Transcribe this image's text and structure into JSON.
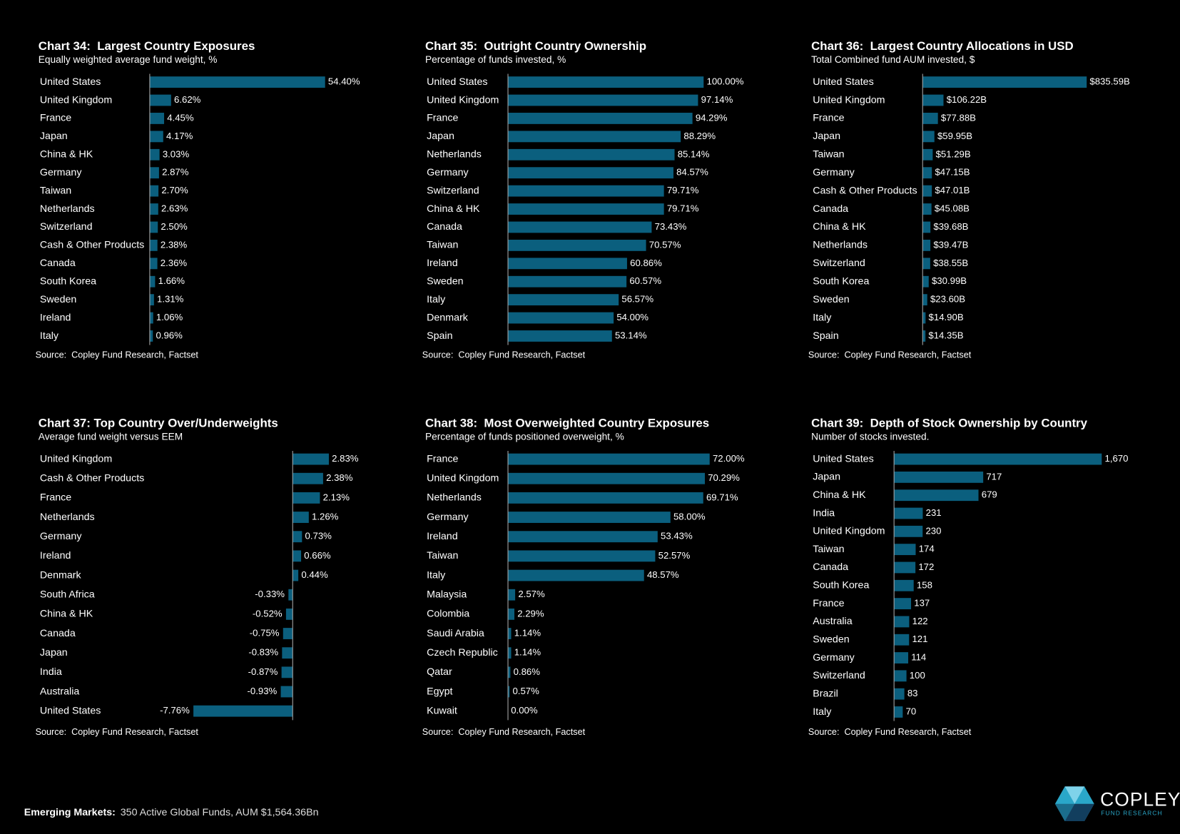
{
  "chart_data": [
    {
      "type": "bar",
      "title": "Chart 34:  Largest Country Exposures",
      "subtitle": "Equally weighted average fund weight, %",
      "source": "Source:  Copley Fund Research, Factset",
      "color": "#0b5f7e",
      "categories": [
        "United States",
        "United Kingdom",
        "France",
        "Japan",
        "China & HK",
        "Germany",
        "Taiwan",
        "Netherlands",
        "Switzerland",
        "Cash & Other Products",
        "Canada",
        "South Korea",
        "Sweden",
        "Ireland",
        "Italy"
      ],
      "values": [
        54.4,
        6.62,
        4.45,
        4.17,
        3.03,
        2.87,
        2.7,
        2.63,
        2.5,
        2.38,
        2.36,
        1.66,
        1.31,
        1.06,
        0.96
      ],
      "value_labels": [
        "54.40%",
        "6.62%",
        "4.45%",
        "4.17%",
        "3.03%",
        "2.87%",
        "2.70%",
        "2.63%",
        "2.50%",
        "2.38%",
        "2.36%",
        "1.66%",
        "1.31%",
        "1.06%",
        "0.96%"
      ]
    },
    {
      "type": "bar",
      "title": "Chart 35:  Outright Country Ownership",
      "subtitle": "Percentage of funds invested, %",
      "source": "Source:  Copley Fund Research, Factset",
      "color": "#0b5f7e",
      "categories": [
        "United States",
        "United Kingdom",
        "France",
        "Japan",
        "Netherlands",
        "Germany",
        "Switzerland",
        "China & HK",
        "Canada",
        "Taiwan",
        "Ireland",
        "Sweden",
        "Italy",
        "Denmark",
        "Spain"
      ],
      "values": [
        100.0,
        97.14,
        94.29,
        88.29,
        85.14,
        84.57,
        79.71,
        79.71,
        73.43,
        70.57,
        60.86,
        60.57,
        56.57,
        54.0,
        53.14
      ],
      "value_labels": [
        "100.00%",
        "97.14%",
        "94.29%",
        "88.29%",
        "85.14%",
        "84.57%",
        "79.71%",
        "79.71%",
        "73.43%",
        "70.57%",
        "60.86%",
        "60.57%",
        "56.57%",
        "54.00%",
        "53.14%"
      ]
    },
    {
      "type": "bar",
      "title": "Chart 36:  Largest Country Allocations in USD",
      "subtitle": "Total Combined fund AUM invested, $",
      "source": "Source:  Copley Fund Research, Factset",
      "color": "#0b5f7e",
      "categories": [
        "United States",
        "United Kingdom",
        "France",
        "Japan",
        "Taiwan",
        "Germany",
        "Cash & Other Products",
        "Canada",
        "China & HK",
        "Netherlands",
        "Switzerland",
        "South Korea",
        "Sweden",
        "Italy",
        "Spain"
      ],
      "values": [
        835.59,
        106.22,
        77.88,
        59.95,
        51.29,
        47.15,
        47.01,
        45.08,
        39.68,
        39.47,
        38.55,
        30.99,
        23.6,
        14.9,
        14.35
      ],
      "value_labels": [
        "$835.59B",
        "$106.22B",
        "$77.88B",
        "$59.95B",
        "$51.29B",
        "$47.15B",
        "$47.01B",
        "$45.08B",
        "$39.68B",
        "$39.47B",
        "$38.55B",
        "$30.99B",
        "$23.60B",
        "$14.90B",
        "$14.35B"
      ]
    },
    {
      "type": "bar",
      "title": "Chart 37: Top Country Over/Underweights",
      "subtitle": "Average fund weight versus EEM",
      "source": "Source:  Copley Fund Research, Factset",
      "color": "#0b5f7e",
      "categories": [
        "United Kingdom",
        "Cash & Other Products",
        "France",
        "Netherlands",
        "Germany",
        "Ireland",
        "Denmark",
        "South Africa",
        "China & HK",
        "Canada",
        "Japan",
        "India",
        "Australia",
        "United States"
      ],
      "values": [
        2.83,
        2.38,
        2.13,
        1.26,
        0.73,
        0.66,
        0.44,
        -0.33,
        -0.52,
        -0.75,
        -0.83,
        -0.87,
        -0.93,
        -7.76
      ],
      "value_labels": [
        "2.83%",
        "2.38%",
        "2.13%",
        "1.26%",
        "0.73%",
        "0.66%",
        "0.44%",
        "-0.33%",
        "-0.52%",
        "-0.75%",
        "-0.83%",
        "-0.87%",
        "-0.93%",
        "-7.76%"
      ]
    },
    {
      "type": "bar",
      "title": "Chart 38:  Most Overweighted Country Exposures",
      "subtitle": "Percentage of funds positioned overweight, %",
      "source": "Source:  Copley Fund Research, Factset",
      "color": "#0b5f7e",
      "categories": [
        "France",
        "United Kingdom",
        "Netherlands",
        "Germany",
        "Ireland",
        "Taiwan",
        "Italy",
        "Malaysia",
        "Colombia",
        "Saudi Arabia",
        "Czech Republic",
        "Qatar",
        "Egypt",
        "Kuwait"
      ],
      "values": [
        72.0,
        70.29,
        69.71,
        58.0,
        53.43,
        52.57,
        48.57,
        2.57,
        2.29,
        1.14,
        1.14,
        0.86,
        0.57,
        0.0
      ],
      "value_labels": [
        "72.00%",
        "70.29%",
        "69.71%",
        "58.00%",
        "53.43%",
        "52.57%",
        "48.57%",
        "2.57%",
        "2.29%",
        "1.14%",
        "1.14%",
        "0.86%",
        "0.57%",
        "0.00%"
      ]
    },
    {
      "type": "bar",
      "title": "Chart 39:  Depth of Stock Ownership by Country",
      "subtitle": "Number of stocks invested.",
      "source": "Source:  Copley Fund Research, Factset",
      "color": "#0b5f7e",
      "categories": [
        "United States",
        "Japan",
        "China & HK",
        "India",
        "United Kingdom",
        "Taiwan",
        "Canada",
        "South Korea",
        "France",
        "Australia",
        "Sweden",
        "Germany",
        "Switzerland",
        "Brazil",
        "Italy"
      ],
      "values": [
        1670,
        717,
        679,
        231,
        230,
        174,
        172,
        158,
        137,
        122,
        121,
        114,
        100,
        83,
        70
      ],
      "value_labels": [
        "1,670",
        "717",
        "679",
        "231",
        "230",
        "174",
        "172",
        "158",
        "137",
        "122",
        "121",
        "114",
        "100",
        "83",
        "70"
      ]
    }
  ],
  "footer": {
    "label": "Emerging Markets:",
    "text": "350 Active Global Funds, AUM $1,564.36Bn"
  },
  "logo": {
    "name": "COPLEY",
    "tagline": "FUND RESEARCH"
  }
}
